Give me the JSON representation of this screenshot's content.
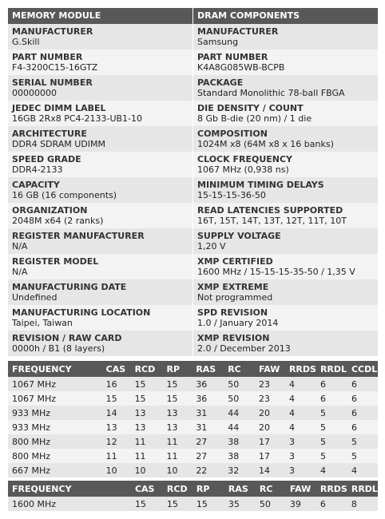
{
  "memory_module": {
    "header": "MEMORY MODULE",
    "fields": [
      {
        "label": "MANUFACTURER",
        "value": "G.Skill"
      },
      {
        "label": "PART NUMBER",
        "value": "F4-3200C15-16GTZ"
      },
      {
        "label": "SERIAL NUMBER",
        "value": "00000000"
      },
      {
        "label": "JEDEC DIMM LABEL",
        "value": "16GB 2Rx8 PC4-2133-UB1-10"
      },
      {
        "label": "ARCHITECTURE",
        "value": "DDR4 SDRAM UDIMM"
      },
      {
        "label": "SPEED GRADE",
        "value": "DDR4-2133"
      },
      {
        "label": "CAPACITY",
        "value": "16 GB (16 components)"
      },
      {
        "label": "ORGANIZATION",
        "value": "2048M x64 (2 ranks)"
      },
      {
        "label": "REGISTER MANUFACTURER",
        "value": "N/A"
      },
      {
        "label": "REGISTER MODEL",
        "value": "N/A"
      },
      {
        "label": "MANUFACTURING DATE",
        "value": "Undefined"
      },
      {
        "label": "MANUFACTURING LOCATION",
        "value": "Taipei, Taiwan"
      },
      {
        "label": "REVISION / RAW CARD",
        "value": "0000h / B1 (8 layers)"
      }
    ]
  },
  "dram_components": {
    "header": "DRAM COMPONENTS",
    "fields": [
      {
        "label": "MANUFACTURER",
        "value": "Samsung"
      },
      {
        "label": "PART NUMBER",
        "value": "K4A8G085WB-BCPB"
      },
      {
        "label": "PACKAGE",
        "value": "Standard Monolithic 78-ball FBGA"
      },
      {
        "label": "DIE DENSITY / COUNT",
        "value": "8 Gb B-die (20 nm) / 1 die"
      },
      {
        "label": "COMPOSITION",
        "value": "1024M x8 (64M x8 x 16 banks)"
      },
      {
        "label": "CLOCK FREQUENCY",
        "value": "1067 MHz (0,938 ns)"
      },
      {
        "label": "MINIMUM TIMING DELAYS",
        "value": "15-15-15-36-50"
      },
      {
        "label": "READ LATENCIES SUPPORTED",
        "value": "16T, 15T, 14T, 13T, 12T, 11T, 10T"
      },
      {
        "label": "SUPPLY VOLTAGE",
        "value": "1,20 V"
      },
      {
        "label": "XMP CERTIFIED",
        "value": "1600 MHz / 15-15-15-35-50 / 1,35 V"
      },
      {
        "label": "XMP EXTREME",
        "value": "Not programmed"
      },
      {
        "label": "SPD REVISION",
        "value": "1.0 / January 2014"
      },
      {
        "label": "XMP REVISION",
        "value": "2.0 / December 2013"
      }
    ]
  },
  "jedec_timings": {
    "columns": [
      "FREQUENCY",
      "CAS",
      "RCD",
      "RP",
      "RAS",
      "RC",
      "FAW",
      "RRDS",
      "RRDL",
      "CCDL"
    ],
    "rows": [
      [
        "1067 MHz",
        "16",
        "15",
        "15",
        "36",
        "50",
        "23",
        "4",
        "6",
        "6"
      ],
      [
        "1067 MHz",
        "15",
        "15",
        "15",
        "36",
        "50",
        "23",
        "4",
        "6",
        "6"
      ],
      [
        "933 MHz",
        "14",
        "13",
        "13",
        "31",
        "44",
        "20",
        "4",
        "5",
        "6"
      ],
      [
        "933 MHz",
        "13",
        "13",
        "13",
        "31",
        "44",
        "20",
        "4",
        "5",
        "6"
      ],
      [
        "800 MHz",
        "12",
        "11",
        "11",
        "27",
        "38",
        "17",
        "3",
        "5",
        "5"
      ],
      [
        "800 MHz",
        "11",
        "11",
        "11",
        "27",
        "38",
        "17",
        "3",
        "5",
        "5"
      ],
      [
        "667 MHz",
        "10",
        "10",
        "10",
        "22",
        "32",
        "14",
        "3",
        "4",
        "4"
      ]
    ]
  },
  "xmp_timings": {
    "columns": [
      "FREQUENCY",
      "",
      "CAS",
      "RCD",
      "RP",
      "RAS",
      "RC",
      "FAW",
      "RRDS",
      "RRDL"
    ],
    "rows": [
      [
        "1600 MHz",
        "",
        "15",
        "15",
        "15",
        "35",
        "50",
        "39",
        "6",
        "8"
      ]
    ]
  }
}
